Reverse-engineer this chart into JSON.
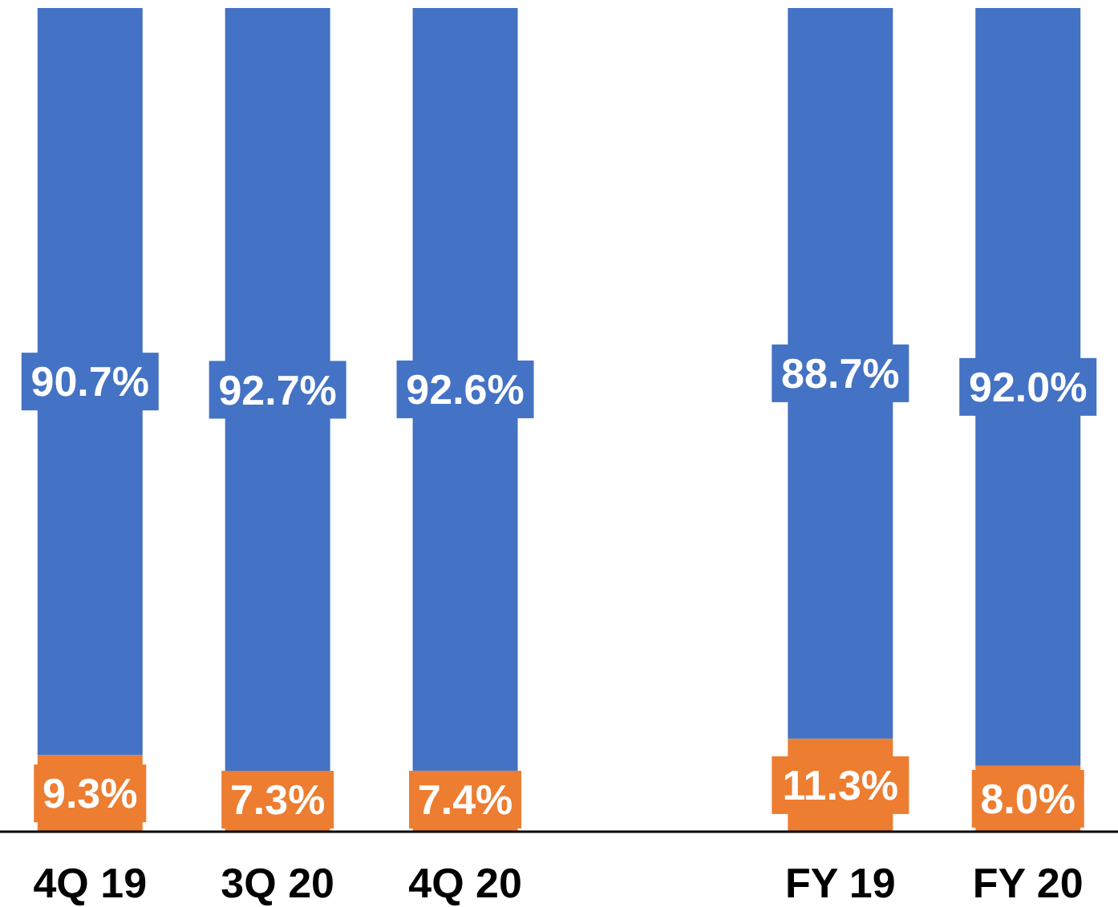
{
  "chart_data": {
    "type": "bar",
    "stacked": true,
    "categories": [
      "4Q 19",
      "3Q 20",
      "4Q 20",
      null,
      "FY 19",
      "FY 20"
    ],
    "series": [
      {
        "color": "#ed7d31",
        "values": [
          9.3,
          7.3,
          7.4,
          null,
          11.3,
          8.0
        ],
        "value_labels": [
          "9.3%",
          "7.3%",
          "7.4%",
          null,
          "11.3%",
          "8.0%"
        ]
      },
      {
        "color": "#4472c4",
        "values": [
          90.7,
          92.7,
          92.6,
          null,
          88.7,
          92.0
        ],
        "value_labels": [
          "90.7%",
          "92.7%",
          "92.6%",
          null,
          "88.7%",
          "92.0%"
        ]
      }
    ]
  }
}
